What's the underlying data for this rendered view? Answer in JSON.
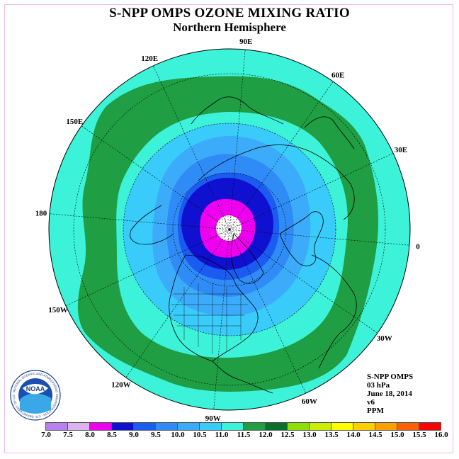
{
  "title": "S-NPP OMPS OZONE MIXING RATIO",
  "subtitle": "Northern Hemisphere",
  "info": {
    "instrument": "S-NPP OMPS",
    "level": "03 hPa",
    "date": "June 18, 2014",
    "version": "v6",
    "units": "PPM"
  },
  "longitude_labels": [
    {
      "text": "90E",
      "lon": 90
    },
    {
      "text": "60E",
      "lon": 60
    },
    {
      "text": "30E",
      "lon": 30
    },
    {
      "text": "0",
      "lon": 0
    },
    {
      "text": "30W",
      "lon": -30
    },
    {
      "text": "60W",
      "lon": -60
    },
    {
      "text": "90W",
      "lon": -90
    },
    {
      "text": "120W",
      "lon": -120
    },
    {
      "text": "150W",
      "lon": -150
    },
    {
      "text": "180",
      "lon": 180
    },
    {
      "text": "150E",
      "lon": 150
    },
    {
      "text": "120E",
      "lon": 120
    }
  ],
  "colorbar": {
    "ticks": [
      "7.0",
      "7.5",
      "8.0",
      "8.5",
      "9.0",
      "9.5",
      "10.0",
      "10.5",
      "11.0",
      "11.5",
      "12.0",
      "12.5",
      "13.0",
      "13.5",
      "14.0",
      "14.5",
      "15.0",
      "15.5",
      "16.0"
    ],
    "colors": [
      "#b980f0",
      "#dab4f0",
      "#ee00ee",
      "#1010d0",
      "#1a5cf0",
      "#2f8cf6",
      "#3cacfa",
      "#39cbfa",
      "#3cf2d8",
      "#1f9e44",
      "#0a6e2c",
      "#8ee000",
      "#c8f000",
      "#ffff00",
      "#ffd000",
      "#ffa000",
      "#ff6000",
      "#ff0000",
      "#8c5a40"
    ]
  },
  "logo_text": "NOAA",
  "logo_ring_text": "NATIONAL OCEANIC AND ATMOSPHERIC ADMINISTRATION · U.S. DEPARTMENT OF COMMERCE"
}
